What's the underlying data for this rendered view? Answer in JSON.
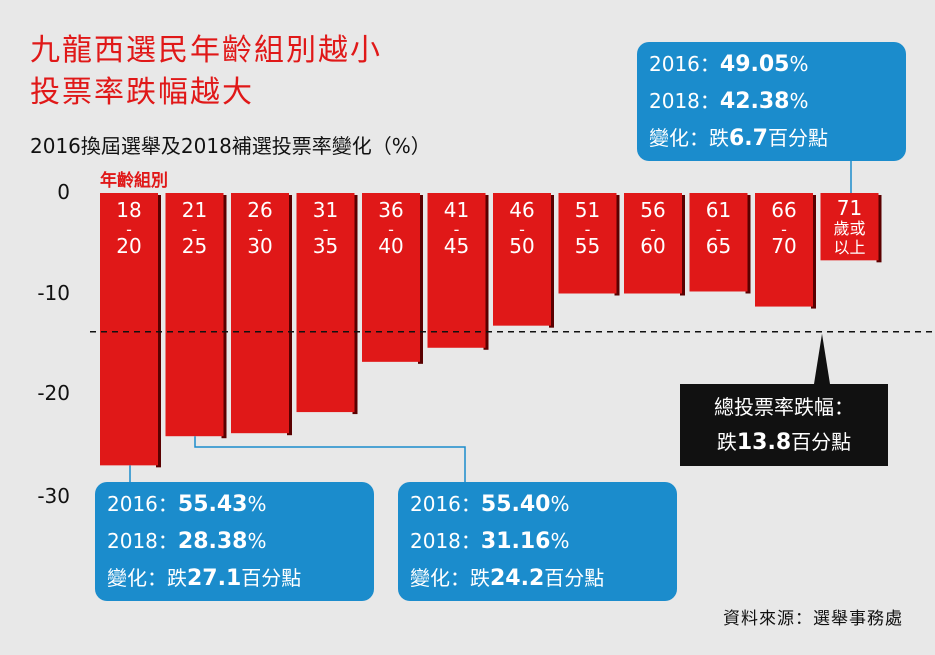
{
  "title": [
    "九龍西選民年齡組別越小",
    "投票率跌幅越大"
  ],
  "subtitle": "2016換屆選舉及2018補選投票率變化（%）",
  "age_axis_label": "年齡組別",
  "source": "資料來源：選舉事務處",
  "colors": {
    "bar": "#e01818",
    "bar_edge": "#5a0000",
    "callout": "#1b8ccc",
    "dark": "#111111"
  },
  "chart_data": {
    "type": "bar",
    "title": "2016換屆選舉及2018補選投票率變化（%）",
    "categories": [
      [
        "18",
        "-",
        "20"
      ],
      [
        "21",
        "-",
        "25"
      ],
      [
        "26",
        "-",
        "30"
      ],
      [
        "31",
        "-",
        "35"
      ],
      [
        "36",
        "-",
        "40"
      ],
      [
        "41",
        "-",
        "45"
      ],
      [
        "46",
        "-",
        "50"
      ],
      [
        "51",
        "-",
        "55"
      ],
      [
        "56",
        "-",
        "60"
      ],
      [
        "61",
        "-",
        "65"
      ],
      [
        "66",
        "-",
        "70"
      ],
      [
        "71",
        "歲或",
        "以上"
      ]
    ],
    "values": [
      -27.1,
      -24.2,
      -23.9,
      -21.8,
      -16.8,
      -15.4,
      -13.2,
      -10.0,
      -10.0,
      -9.8,
      -11.3,
      -6.7
    ],
    "ylim": [
      -30,
      0
    ],
    "yticks": [
      0,
      -10,
      -20,
      -30
    ],
    "reference_line": {
      "value": -13.8
    }
  },
  "callouts": {
    "first": {
      "l1": "2016：",
      "v1": "55.43",
      "u1": "%",
      "l2": "2018：",
      "v2": "28.38",
      "u2": "%",
      "l3": "變化：跌",
      "v3": "27.1",
      "u3": "百分點"
    },
    "second": {
      "l1": "2016：",
      "v1": "55.40",
      "u1": "%",
      "l2": "2018：",
      "v2": "31.16",
      "u2": "%",
      "l3": "變化：跌",
      "v3": "24.2",
      "u3": "百分點"
    },
    "last": {
      "l1": "2016：",
      "v1": "49.05",
      "u1": "%",
      "l2": "2018：",
      "v2": "42.38",
      "u2": "%",
      "l3": "變化：跌",
      "v3": "6.7",
      "u3": "百分點"
    }
  },
  "overall": {
    "line1": "總投票率跌幅：",
    "prefix": "跌",
    "value": "13.8",
    "unit": "百分點"
  }
}
